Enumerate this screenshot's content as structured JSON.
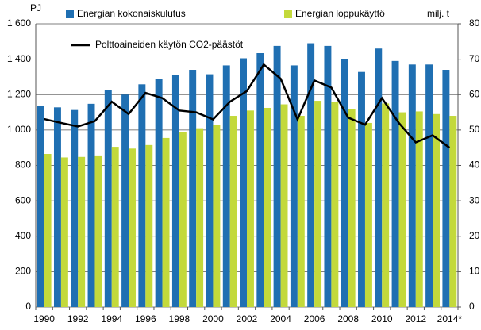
{
  "chart_data": {
    "type": "bar-line",
    "y_label": "PJ",
    "y2_label": "milj. t",
    "categories": [
      "1990",
      null,
      "1992",
      null,
      "1994",
      null,
      "1996",
      null,
      "1998",
      null,
      "2000",
      null,
      "2002",
      null,
      "2004",
      null,
      "2006",
      null,
      "2008",
      null,
      "2010",
      null,
      "2012",
      null,
      "2014*"
    ],
    "series": [
      {
        "name": "Energian kokonaiskulutus",
        "color": "#1f6fb2",
        "type": "bar",
        "values": [
          1138,
          1128,
          1113,
          1148,
          1225,
          1200,
          1258,
          1290,
          1310,
          1340,
          1315,
          1365,
          1405,
          1480,
          1475,
          1365,
          1490,
          1475,
          1400,
          1328,
          1460,
          1390,
          1370,
          1370,
          1340
        ]
      },
      {
        "name": "Energian loppukäyttö",
        "color": "#c3d93b",
        "type": "bar",
        "values": [
          865,
          845,
          848,
          852,
          905,
          895,
          915,
          955,
          990,
          1010,
          1030,
          1080,
          1110,
          1125,
          1145,
          1080,
          1165,
          1160,
          1120,
          1040,
          1150,
          1100,
          1105,
          1090,
          1080
        ]
      },
      {
        "name": "Polttoaineiden käytön CO2-päästöt",
        "color": "#000000",
        "type": "line",
        "axis": "y2",
        "values": [
          53.1,
          52,
          51,
          52.5,
          58,
          54.5,
          60.5,
          59,
          55.5,
          55,
          53,
          58,
          61,
          68.5,
          64.5,
          53,
          64,
          62,
          53.5,
          51.5,
          59,
          52,
          46.5,
          48.5,
          45
        ]
      }
    ],
    "ylim": [
      0,
      1600
    ],
    "yticks": [
      0,
      200,
      400,
      600,
      800,
      {
        "value": 1000,
        "label": "1 000"
      },
      {
        "value": 1200,
        "label": "1 200"
      },
      {
        "value": 1400,
        "label": "1 400"
      },
      {
        "value": 1600,
        "label": "1 600"
      }
    ],
    "y2lim": [
      0,
      80
    ],
    "y2ticks": [
      0,
      10,
      20,
      30,
      40,
      50,
      60,
      70,
      80
    ],
    "grid": true
  }
}
